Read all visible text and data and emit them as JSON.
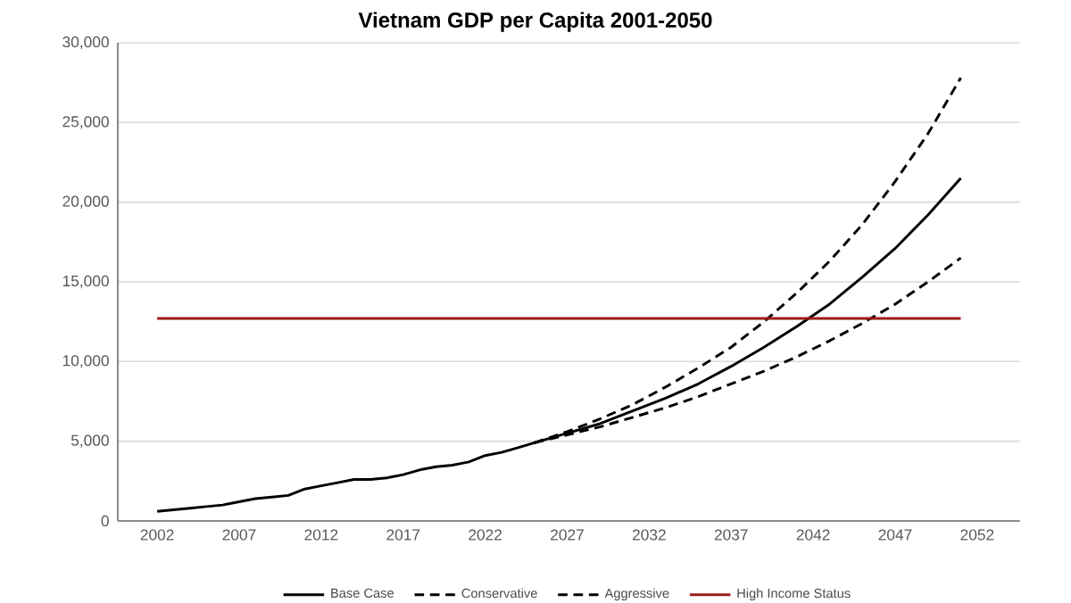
{
  "chart_data": {
    "type": "line",
    "title": "Vietnam GDP per Capita 2001-2050",
    "xlim": [
      1999.6,
      2054.6
    ],
    "xticks": [
      2002,
      2007,
      2012,
      2017,
      2022,
      2027,
      2032,
      2037,
      2042,
      2047,
      2052
    ],
    "ylim": [
      0,
      30000
    ],
    "yticks": [
      0,
      {
        "value": 5000,
        "label": "5,000"
      },
      {
        "value": 10000,
        "label": "10,000"
      },
      {
        "value": 15000,
        "label": "15,000"
      },
      {
        "value": 20000,
        "label": "20,000"
      },
      {
        "value": 25000,
        "label": "25,000"
      },
      {
        "value": 30000,
        "label": "30,000"
      }
    ],
    "grid": "y",
    "legend": "bottom",
    "series": [
      {
        "name": "Base Case",
        "color": "#000000",
        "line_style": "solid",
        "x": [
          2002,
          2003,
          2004,
          2005,
          2006,
          2007,
          2008,
          2009,
          2010,
          2011,
          2012,
          2013,
          2014,
          2015,
          2016,
          2017,
          2018,
          2019,
          2020,
          2021,
          2022,
          2023,
          2024,
          2025,
          2027,
          2029,
          2031,
          2033,
          2035,
          2037,
          2039,
          2041,
          2043,
          2045,
          2047,
          2049,
          2051
        ],
        "values": [
          600,
          700,
          800,
          900,
          1000,
          1200,
          1400,
          1500,
          1600,
          2000,
          2200,
          2400,
          2600,
          2600,
          2700,
          2900,
          3200,
          3400,
          3500,
          3700,
          4100,
          4300,
          4600,
          4900,
          5500,
          6100,
          6900,
          7700,
          8600,
          9700,
          10900,
          12200,
          13600,
          15300,
          17100,
          19200,
          21500
        ]
      },
      {
        "name": "Conservative",
        "color": "#000000",
        "line_style": "dashed",
        "x": [
          2025,
          2027,
          2029,
          2031,
          2033,
          2035,
          2037,
          2039,
          2041,
          2043,
          2045,
          2047,
          2049,
          2051
        ],
        "values": [
          4900,
          5400,
          5900,
          6500,
          7100,
          7800,
          8600,
          9400,
          10300,
          11300,
          12400,
          13600,
          15000,
          16500
        ]
      },
      {
        "name": "Aggressive",
        "color": "#000000",
        "line_style": "dashed",
        "x": [
          2025,
          2027,
          2029,
          2031,
          2033,
          2035,
          2037,
          2039,
          2041,
          2043,
          2045,
          2047,
          2049,
          2051
        ],
        "values": [
          4900,
          5600,
          6400,
          7300,
          8400,
          9600,
          10900,
          12500,
          14300,
          16300,
          18600,
          21300,
          24300,
          27800
        ]
      },
      {
        "name": "High Income Status",
        "color": "#9b1b1b",
        "line_style": "solid",
        "x": [
          2002,
          2051
        ],
        "values": [
          12700,
          12700
        ]
      }
    ]
  }
}
